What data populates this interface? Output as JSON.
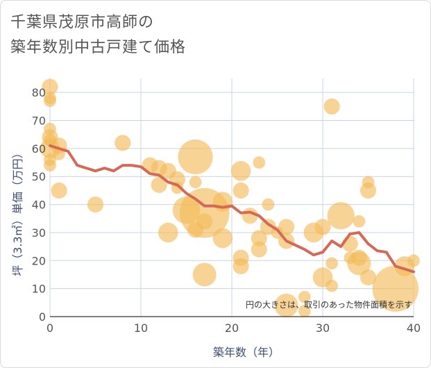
{
  "title_lines": [
    "千葉県茂原市高師の",
    "築年数別中古戸建て価格"
  ],
  "chart_data": {
    "type": "scatter",
    "title": "千葉県茂原市高師の築年数別中古戸建て価格",
    "xlabel": "築年数（年）",
    "ylabel": "坪（3.3㎡）単価（万円）",
    "xlim": [
      0,
      40
    ],
    "ylim": [
      0,
      85
    ],
    "xticks": [
      0,
      10,
      20,
      30,
      40
    ],
    "yticks": [
      0,
      10,
      20,
      30,
      40,
      50,
      60,
      70,
      80
    ],
    "grid": true,
    "note": "円の大きさは、取引のあった物件面積を示す",
    "colors": {
      "bubble": "#f2b955",
      "trend": "#d46a56",
      "grid": "#c9d3e4"
    },
    "points": [
      {
        "x": 0,
        "y": 82,
        "size": 3
      },
      {
        "x": 0,
        "y": 78,
        "size": 2
      },
      {
        "x": 0,
        "y": 77,
        "size": 2
      },
      {
        "x": 0,
        "y": 67,
        "size": 2
      },
      {
        "x": 0,
        "y": 64,
        "size": 3
      },
      {
        "x": 0,
        "y": 63,
        "size": 2
      },
      {
        "x": 0,
        "y": 60,
        "size": 4
      },
      {
        "x": 0,
        "y": 56,
        "size": 2
      },
      {
        "x": 0,
        "y": 54,
        "size": 2
      },
      {
        "x": 1,
        "y": 61,
        "size": 3
      },
      {
        "x": 1,
        "y": 58,
        "size": 2
      },
      {
        "x": 1,
        "y": 45,
        "size": 3
      },
      {
        "x": 5,
        "y": 40,
        "size": 3
      },
      {
        "x": 8,
        "y": 62,
        "size": 3
      },
      {
        "x": 11,
        "y": 54,
        "size": 3
      },
      {
        "x": 12,
        "y": 53,
        "size": 3
      },
      {
        "x": 12,
        "y": 47,
        "size": 3
      },
      {
        "x": 13,
        "y": 52,
        "size": 3
      },
      {
        "x": 13,
        "y": 30,
        "size": 4
      },
      {
        "x": 14,
        "y": 49,
        "size": 3
      },
      {
        "x": 14,
        "y": 46,
        "size": 2
      },
      {
        "x": 15,
        "y": 38,
        "size": 6
      },
      {
        "x": 16,
        "y": 57,
        "size": 8
      },
      {
        "x": 16,
        "y": 31,
        "size": 3
      },
      {
        "x": 16,
        "y": 48,
        "size": 2
      },
      {
        "x": 17,
        "y": 37,
        "size": 12
      },
      {
        "x": 17,
        "y": 34,
        "size": 3
      },
      {
        "x": 17,
        "y": 15,
        "size": 5
      },
      {
        "x": 19,
        "y": 41,
        "size": 4
      },
      {
        "x": 19,
        "y": 28,
        "size": 4
      },
      {
        "x": 21,
        "y": 52,
        "size": 4
      },
      {
        "x": 21,
        "y": 45,
        "size": 3
      },
      {
        "x": 21,
        "y": 21,
        "size": 3
      },
      {
        "x": 21,
        "y": 18,
        "size": 3
      },
      {
        "x": 22,
        "y": 36,
        "size": 3
      },
      {
        "x": 23,
        "y": 55,
        "size": 2
      },
      {
        "x": 23,
        "y": 28,
        "size": 3
      },
      {
        "x": 23,
        "y": 24,
        "size": 3
      },
      {
        "x": 24,
        "y": 40,
        "size": 2
      },
      {
        "x": 24,
        "y": 32,
        "size": 3
      },
      {
        "x": 25,
        "y": 30,
        "size": 2
      },
      {
        "x": 26,
        "y": 32,
        "size": 3
      },
      {
        "x": 26,
        "y": 27,
        "size": 3
      },
      {
        "x": 26,
        "y": 4,
        "size": 5
      },
      {
        "x": 28,
        "y": 7,
        "size": 2
      },
      {
        "x": 28,
        "y": 2,
        "size": 2
      },
      {
        "x": 29,
        "y": 30,
        "size": 4
      },
      {
        "x": 30,
        "y": 32,
        "size": 3
      },
      {
        "x": 30,
        "y": 14,
        "size": 4
      },
      {
        "x": 31,
        "y": 75,
        "size": 3
      },
      {
        "x": 31,
        "y": 19,
        "size": 2
      },
      {
        "x": 31,
        "y": 11,
        "size": 2
      },
      {
        "x": 32,
        "y": 36,
        "size": 6
      },
      {
        "x": 33,
        "y": 26,
        "size": 3
      },
      {
        "x": 33,
        "y": 21,
        "size": 2
      },
      {
        "x": 34,
        "y": 34,
        "size": 2
      },
      {
        "x": 34,
        "y": 21,
        "size": 3
      },
      {
        "x": 34,
        "y": 19,
        "size": 5
      },
      {
        "x": 35,
        "y": 48,
        "size": 2
      },
      {
        "x": 35,
        "y": 45,
        "size": 3
      },
      {
        "x": 35,
        "y": 14,
        "size": 3
      },
      {
        "x": 38,
        "y": 10,
        "size": 11
      },
      {
        "x": 39,
        "y": 18,
        "size": 4
      },
      {
        "x": 40,
        "y": 20,
        "size": 2
      }
    ],
    "trend": {
      "x": [
        0,
        1,
        2,
        3,
        4,
        5,
        6,
        7,
        8,
        9,
        10,
        11,
        12,
        13,
        14,
        15,
        16,
        17,
        18,
        19,
        20,
        21,
        22,
        23,
        24,
        25,
        26,
        27,
        28,
        29,
        30,
        31,
        32,
        33,
        34,
        35,
        36,
        37,
        38,
        39,
        40
      ],
      "y": [
        61,
        60,
        59,
        54,
        53,
        52,
        53,
        52,
        54,
        54,
        53.5,
        51,
        50.5,
        48,
        47,
        44,
        42,
        39.5,
        39.5,
        39,
        39.5,
        37,
        37.3,
        36,
        33,
        31,
        27,
        25.5,
        24,
        22,
        23,
        27,
        25,
        29.5,
        30,
        26,
        23.5,
        23,
        18,
        17,
        16
      ]
    }
  }
}
